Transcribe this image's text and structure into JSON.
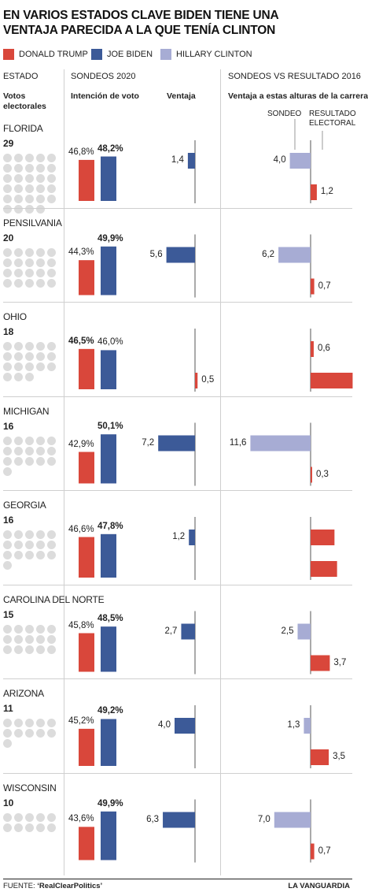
{
  "title_line1": "EN VARIOS ESTADOS CLAVE BIDEN TIENE UNA",
  "title_line2": "VENTAJA PARECIDA A LA QUE TENÍA CLINTON",
  "colors": {
    "trump": "#d9473b",
    "biden": "#3c5a98",
    "clinton": "#a7acd4",
    "dot": "#dcdcdc"
  },
  "legend": [
    {
      "label": "DONALD TRUMP",
      "color": "#d9473b"
    },
    {
      "label": "JOE BIDEN",
      "color": "#3c5a98"
    },
    {
      "label": "HILLARY CLINTON",
      "color": "#a7acd4"
    }
  ],
  "headers": {
    "estado": "ESTADO",
    "votos_line1": "Votos",
    "votos_line2": "electorales",
    "sondeos2020": "SONDEOS 2020",
    "intencion": "Intención de voto",
    "ventaja": "Ventaja",
    "sondeos_vs": "SONDEOS VS RESULTADO 2016",
    "ventaja_alturas": "Ventaja a estas alturas de la carrera",
    "sondeo": "SONDEO",
    "resultado_line1": "RESULTADO",
    "resultado_line2": "ELECTORAL"
  },
  "chart_data": {
    "type": "bar",
    "states": [
      {
        "name": "FLORIDA",
        "votes": 29,
        "trump": "46,8%",
        "biden": "48,2%",
        "trump_v": 46.8,
        "biden_v": 48.2,
        "lead_2020": "1,4",
        "lead_2020_v": 1.4,
        "lead_2020_party": "biden",
        "sondeo_2016": "4,0",
        "sondeo_2016_v": 4.0,
        "sondeo_2016_party": "clinton",
        "resultado_2016": "1,2",
        "resultado_2016_v": 1.2,
        "resultado_2016_party": "trump"
      },
      {
        "name": "PENSILVANIA",
        "votes": 20,
        "trump": "44,3%",
        "biden": "49,9%",
        "trump_v": 44.3,
        "biden_v": 49.9,
        "lead_2020": "5,6",
        "lead_2020_v": 5.6,
        "lead_2020_party": "biden",
        "sondeo_2016": "6,2",
        "sondeo_2016_v": 6.2,
        "sondeo_2016_party": "clinton",
        "resultado_2016": "0,7",
        "resultado_2016_v": 0.7,
        "resultado_2016_party": "trump"
      },
      {
        "name": "OHIO",
        "votes": 18,
        "trump": "46,5%",
        "biden": "46,0%",
        "trump_v": 46.5,
        "biden_v": 46.0,
        "lead_2020": "0,5",
        "lead_2020_v": 0.5,
        "lead_2020_party": "trump",
        "sondeo_2016": "0,6",
        "sondeo_2016_v": 0.6,
        "sondeo_2016_party": "trump",
        "resultado_2016": "8,1",
        "resultado_2016_v": 8.1,
        "resultado_2016_party": "trump"
      },
      {
        "name": "MICHIGAN",
        "votes": 16,
        "trump": "42,9%",
        "biden": "50,1%",
        "trump_v": 42.9,
        "biden_v": 50.1,
        "lead_2020": "7,2",
        "lead_2020_v": 7.2,
        "lead_2020_party": "biden",
        "sondeo_2016": "11,6",
        "sondeo_2016_v": 11.6,
        "sondeo_2016_party": "clinton",
        "resultado_2016": "0,3",
        "resultado_2016_v": 0.3,
        "resultado_2016_party": "trump"
      },
      {
        "name": "GEORGIA",
        "votes": 16,
        "trump": "46,6%",
        "biden": "47,8%",
        "trump_v": 46.6,
        "biden_v": 47.8,
        "lead_2020": "1,2",
        "lead_2020_v": 1.2,
        "lead_2020_party": "biden",
        "sondeo_2016": "4,6",
        "sondeo_2016_v": 4.6,
        "sondeo_2016_party": "trump",
        "resultado_2016": "5,1",
        "resultado_2016_v": 5.1,
        "resultado_2016_party": "trump"
      },
      {
        "name": "CAROLINA DEL NORTE",
        "votes": 15,
        "trump": "45,8%",
        "biden": "48,5%",
        "trump_v": 45.8,
        "biden_v": 48.5,
        "lead_2020": "2,7",
        "lead_2020_v": 2.7,
        "lead_2020_party": "biden",
        "sondeo_2016": "2,5",
        "sondeo_2016_v": 2.5,
        "sondeo_2016_party": "clinton",
        "resultado_2016": "3,7",
        "resultado_2016_v": 3.7,
        "resultado_2016_party": "trump"
      },
      {
        "name": "ARIZONA",
        "votes": 11,
        "trump": "45,2%",
        "biden": "49,2%",
        "trump_v": 45.2,
        "biden_v": 49.2,
        "lead_2020": "4,0",
        "lead_2020_v": 4.0,
        "lead_2020_party": "biden",
        "sondeo_2016": "1,3",
        "sondeo_2016_v": 1.3,
        "sondeo_2016_party": "clinton",
        "resultado_2016": "3,5",
        "resultado_2016_v": 3.5,
        "resultado_2016_party": "trump"
      },
      {
        "name": "WISCONSIN",
        "votes": 10,
        "trump": "43,6%",
        "biden": "49,9%",
        "trump_v": 43.6,
        "biden_v": 49.9,
        "lead_2020": "6,3",
        "lead_2020_v": 6.3,
        "lead_2020_party": "biden",
        "sondeo_2016": "7,0",
        "sondeo_2016_v": 7.0,
        "sondeo_2016_party": "clinton",
        "resultado_2016": "0,7",
        "resultado_2016_v": 0.7,
        "resultado_2016_party": "trump"
      }
    ]
  },
  "footer": {
    "source_prefix": "FUENTE: ",
    "source_name": "‘RealClearPolitics’",
    "brand": "LA VANGUARDIA"
  }
}
